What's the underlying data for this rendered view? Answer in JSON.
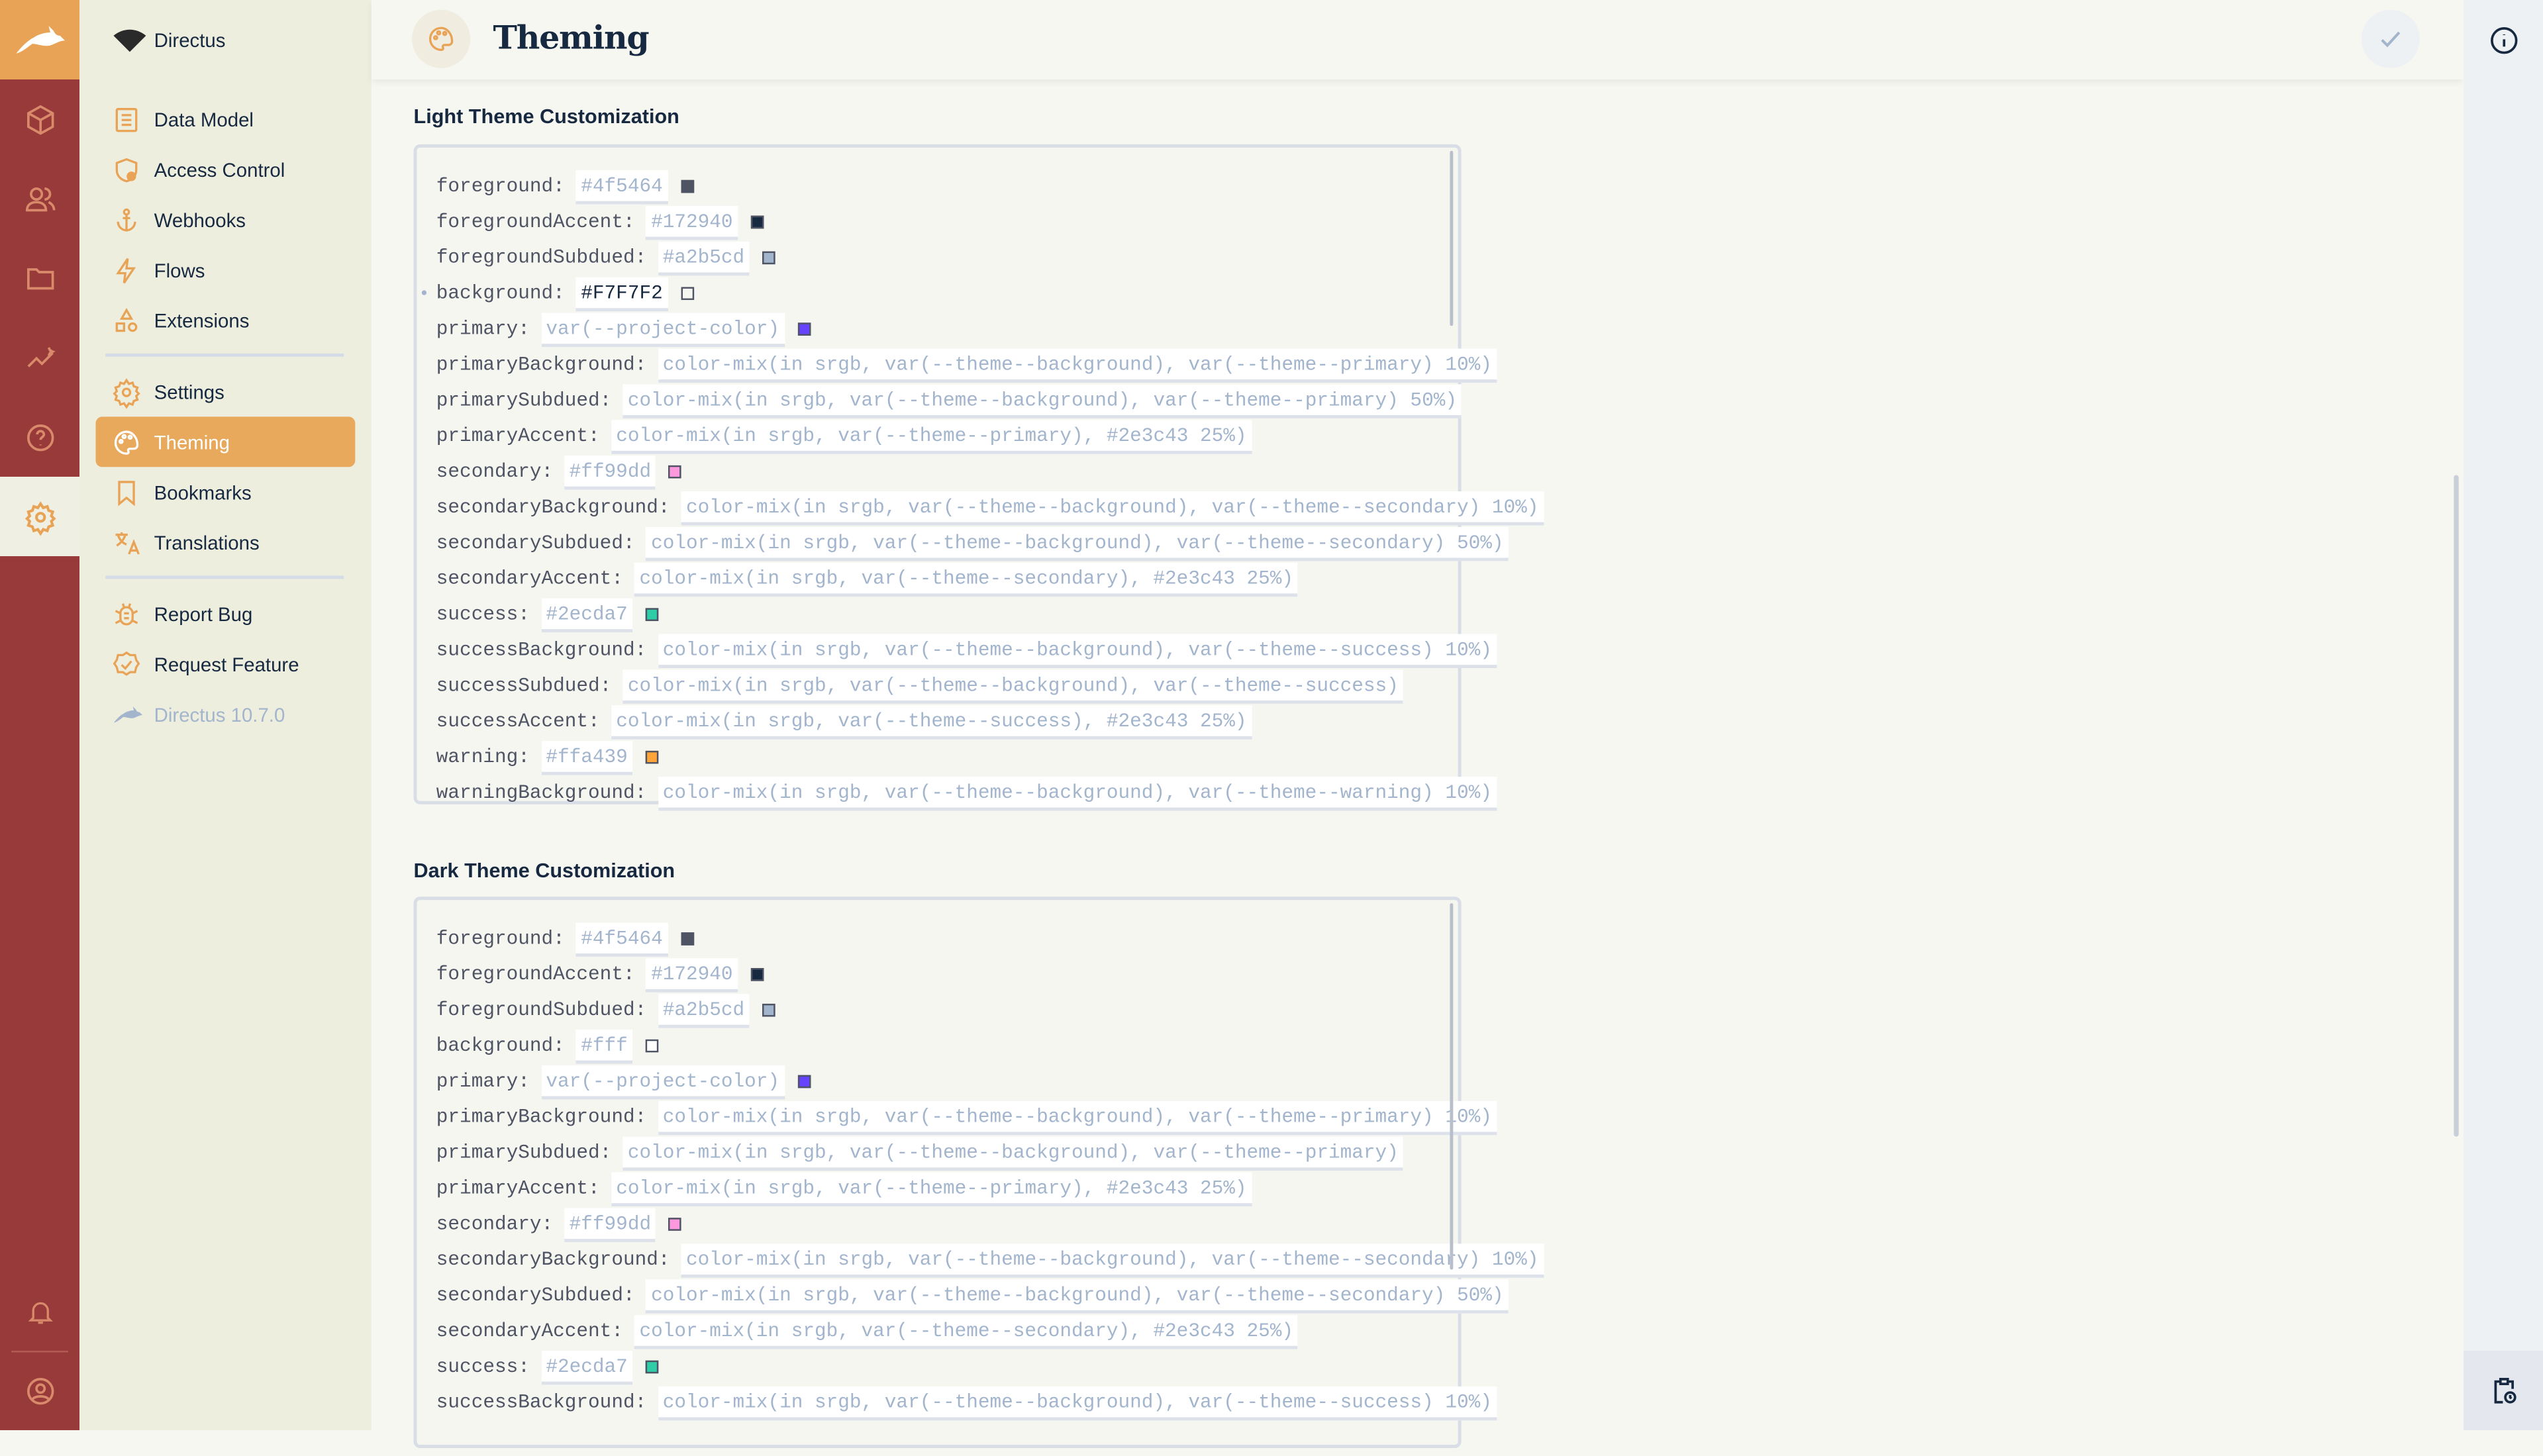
{
  "app": {
    "name": "Directus",
    "version": "Directus 10.7.0"
  },
  "colors": {
    "rail": "#993a3a",
    "accent": "#e8a95c",
    "nav_bg": "#eeeedf",
    "main_bg": "#f7f7f2"
  },
  "rail": {
    "icons": [
      "directus-logo-icon",
      "content-box-icon",
      "users-icon",
      "files-folder-icon",
      "insights-chart-icon",
      "help-icon",
      "settings-gear-icon",
      "bell-icon",
      "user-avatar-icon"
    ]
  },
  "nav": {
    "header": "Directus",
    "groups": [
      [
        {
          "label": "Data Model",
          "icon": "data-model-icon"
        },
        {
          "label": "Access Control",
          "icon": "access-control-icon"
        },
        {
          "label": "Webhooks",
          "icon": "anchor-icon"
        },
        {
          "label": "Flows",
          "icon": "bolt-icon"
        },
        {
          "label": "Extensions",
          "icon": "extensions-icon"
        }
      ],
      [
        {
          "label": "Settings",
          "icon": "gear-icon"
        },
        {
          "label": "Theming",
          "icon": "palette-icon",
          "active": true
        },
        {
          "label": "Bookmarks",
          "icon": "bookmark-icon"
        },
        {
          "label": "Translations",
          "icon": "translate-icon"
        }
      ],
      [
        {
          "label": "Report Bug",
          "icon": "bug-icon"
        },
        {
          "label": "Request Feature",
          "icon": "feature-icon"
        }
      ]
    ]
  },
  "header": {
    "title": "Theming",
    "save_icon": "check-icon"
  },
  "right_sidebar": {
    "icons": [
      "info-icon",
      "activity-clipboard-icon"
    ]
  },
  "light": {
    "title": "Light Theme Customization",
    "rows": [
      {
        "key": "foreground:",
        "value": "#4f5464",
        "swatch": "#4f5464"
      },
      {
        "key": "foregroundAccent:",
        "value": "#172940",
        "swatch": "#172940"
      },
      {
        "key": "foregroundSubdued:",
        "value": "#a2b5cd",
        "swatch": "#a2b5cd"
      },
      {
        "key": "background:",
        "value": "#F7F7F2",
        "swatch": "#F7F7F2",
        "edited": true
      },
      {
        "key": "primary:",
        "value": "var(--project-color)",
        "swatch": "#6644ff"
      },
      {
        "key": "primaryBackground:",
        "value": "color-mix(in srgb, var(--theme--background), var(--theme--primary) 10%)"
      },
      {
        "key": "primarySubdued:",
        "value": "color-mix(in srgb, var(--theme--background), var(--theme--primary) 50%)"
      },
      {
        "key": "primaryAccent:",
        "value": "color-mix(in srgb, var(--theme--primary), #2e3c43 25%)"
      },
      {
        "key": "secondary:",
        "value": "#ff99dd",
        "swatch": "#ff99dd"
      },
      {
        "key": "secondaryBackground:",
        "value": "color-mix(in srgb, var(--theme--background), var(--theme--secondary) 10%)"
      },
      {
        "key": "secondarySubdued:",
        "value": "color-mix(in srgb, var(--theme--background), var(--theme--secondary) 50%)"
      },
      {
        "key": "secondaryAccent:",
        "value": "color-mix(in srgb, var(--theme--secondary), #2e3c43 25%)"
      },
      {
        "key": "success:",
        "value": "#2ecda7",
        "swatch": "#2ecda7"
      },
      {
        "key": "successBackground:",
        "value": "color-mix(in srgb, var(--theme--background), var(--theme--success) 10%)"
      },
      {
        "key": "successSubdued:",
        "value": "color-mix(in srgb, var(--theme--background), var(--theme--success)"
      },
      {
        "key": "successAccent:",
        "value": "color-mix(in srgb, var(--theme--success), #2e3c43 25%)"
      },
      {
        "key": "warning:",
        "value": "#ffa439",
        "swatch": "#ffa439"
      },
      {
        "key": "warningBackground:",
        "value": "color-mix(in srgb, var(--theme--background), var(--theme--warning) 10%)"
      }
    ]
  },
  "dark": {
    "title": "Dark Theme Customization",
    "rows": [
      {
        "key": "foreground:",
        "value": "#4f5464",
        "swatch": "#4f5464"
      },
      {
        "key": "foregroundAccent:",
        "value": "#172940",
        "swatch": "#172940"
      },
      {
        "key": "foregroundSubdued:",
        "value": "#a2b5cd",
        "swatch": "#a2b5cd"
      },
      {
        "key": "background:",
        "value": "#fff",
        "swatch": "#ffffff"
      },
      {
        "key": "primary:",
        "value": "var(--project-color)",
        "swatch": "#6644ff"
      },
      {
        "key": "primaryBackground:",
        "value": "color-mix(in srgb, var(--theme--background), var(--theme--primary) 10%)"
      },
      {
        "key": "primarySubdued:",
        "value": "color-mix(in srgb, var(--theme--background), var(--theme--primary)"
      },
      {
        "key": "primaryAccent:",
        "value": "color-mix(in srgb, var(--theme--primary), #2e3c43 25%)"
      },
      {
        "key": "secondary:",
        "value": "#ff99dd",
        "swatch": "#ff99dd"
      },
      {
        "key": "secondaryBackground:",
        "value": "color-mix(in srgb, var(--theme--background), var(--theme--secondary) 10%)"
      },
      {
        "key": "secondarySubdued:",
        "value": "color-mix(in srgb, var(--theme--background), var(--theme--secondary) 50%)"
      },
      {
        "key": "secondaryAccent:",
        "value": "color-mix(in srgb, var(--theme--secondary), #2e3c43 25%)"
      },
      {
        "key": "success:",
        "value": "#2ecda7",
        "swatch": "#2ecda7"
      },
      {
        "key": "successBackground:",
        "value": "color-mix(in srgb, var(--theme--background), var(--theme--success) 10%)"
      }
    ]
  }
}
